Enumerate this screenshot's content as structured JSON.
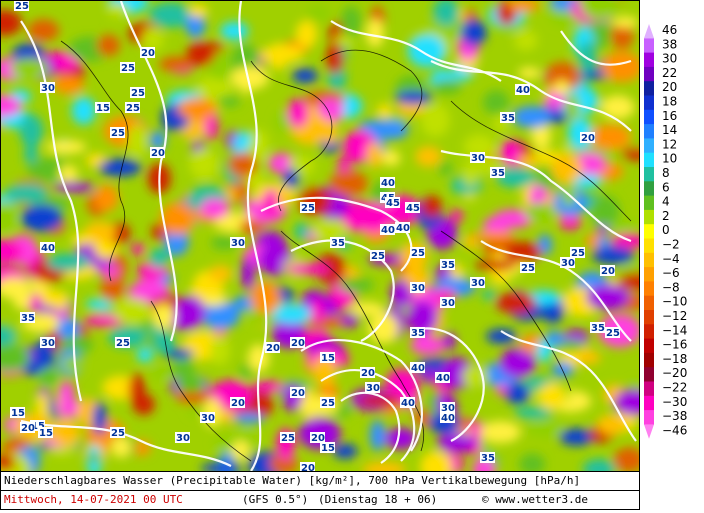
{
  "legend": {
    "ticks": [
      46,
      38,
      30,
      22,
      20,
      18,
      16,
      14,
      12,
      10,
      8,
      6,
      4,
      2,
      0,
      -2,
      -4,
      -6,
      -8,
      -10,
      -12,
      -14,
      -16,
      -18,
      -20,
      -22,
      -30,
      -38,
      -46
    ],
    "colors": [
      "#e0b0ff",
      "#c860ff",
      "#a000e0",
      "#7000c0",
      "#1020a0",
      "#1030d0",
      "#1050ff",
      "#2080ff",
      "#30b0ff",
      "#20e0ff",
      "#20c0a0",
      "#30a040",
      "#60c020",
      "#b0e000",
      "#ffff00",
      "#ffe000",
      "#ffc000",
      "#ffa000",
      "#ff8000",
      "#f06000",
      "#e04000",
      "#d02000",
      "#c00000",
      "#a00000",
      "#900030",
      "#d00080",
      "#ff00c0",
      "#ff40e0",
      "#ff80f0"
    ]
  },
  "contour_labels": [
    "25",
    "30",
    "25",
    "20",
    "25",
    "25",
    "15",
    "25",
    "20",
    "30",
    "35",
    "40",
    "45",
    "40",
    "45",
    "30",
    "35",
    "40",
    "25",
    "20",
    "30",
    "35",
    "25",
    "40",
    "35",
    "30",
    "15",
    "20",
    "25",
    "40",
    "40",
    "20",
    "25",
    "35",
    "30",
    "30",
    "40",
    "25",
    "15",
    "20",
    "25",
    "30",
    "35",
    "45",
    "40",
    "25",
    "20",
    "30",
    "20",
    "15",
    "20",
    "25",
    "15",
    "30",
    "35",
    "25",
    "20",
    "30",
    "20",
    "15",
    "25",
    "40",
    "30",
    "35",
    "20"
  ],
  "footer": {
    "line1": "Niederschlagbares Wasser (Precipitable Water) [kg/m²], 700 hPa Vertikalbewegung [hPa/h]",
    "date": "Mittwoch, 14-07-2021  00 UTC",
    "model": "(GFS 0.5°)",
    "run": "(Dienstag 18 + 06)",
    "copyright": "© www.wetter3.de"
  }
}
